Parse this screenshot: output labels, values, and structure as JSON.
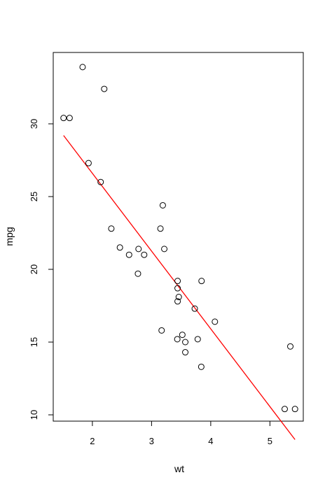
{
  "chart_data": {
    "type": "scatter",
    "title": "",
    "xlabel": "wt",
    "ylabel": "mpg",
    "xlim": [
      1.4,
      5.5
    ],
    "ylim": [
      9.5,
      35
    ],
    "x_ticks": [
      "2",
      "3",
      "4",
      "5"
    ],
    "y_ticks": [
      "10",
      "15",
      "20",
      "25",
      "30"
    ],
    "grid": false,
    "legend": "none",
    "points": [
      {
        "x": 2.62,
        "y": 21.0
      },
      {
        "x": 2.875,
        "y": 21.0
      },
      {
        "x": 2.32,
        "y": 22.8
      },
      {
        "x": 3.215,
        "y": 21.4
      },
      {
        "x": 3.44,
        "y": 18.7
      },
      {
        "x": 3.46,
        "y": 18.1
      },
      {
        "x": 3.57,
        "y": 14.3
      },
      {
        "x": 3.19,
        "y": 24.4
      },
      {
        "x": 3.15,
        "y": 22.8
      },
      {
        "x": 3.44,
        "y": 19.2
      },
      {
        "x": 3.44,
        "y": 17.8
      },
      {
        "x": 4.07,
        "y": 16.4
      },
      {
        "x": 3.73,
        "y": 17.3
      },
      {
        "x": 3.78,
        "y": 15.2
      },
      {
        "x": 5.25,
        "y": 10.4
      },
      {
        "x": 5.424,
        "y": 10.4
      },
      {
        "x": 5.345,
        "y": 14.7
      },
      {
        "x": 2.2,
        "y": 32.4
      },
      {
        "x": 1.615,
        "y": 30.4
      },
      {
        "x": 1.835,
        "y": 33.9
      },
      {
        "x": 2.465,
        "y": 21.5
      },
      {
        "x": 3.52,
        "y": 15.5
      },
      {
        "x": 3.435,
        "y": 15.2
      },
      {
        "x": 3.84,
        "y": 13.3
      },
      {
        "x": 3.845,
        "y": 19.2
      },
      {
        "x": 1.935,
        "y": 27.3
      },
      {
        "x": 2.14,
        "y": 26.0
      },
      {
        "x": 1.513,
        "y": 30.4
      },
      {
        "x": 3.17,
        "y": 15.8
      },
      {
        "x": 2.77,
        "y": 19.7
      },
      {
        "x": 3.57,
        "y": 15.0
      },
      {
        "x": 2.78,
        "y": 21.4
      }
    ],
    "regression_line": {
      "intercept": 37.285,
      "slope": -5.344,
      "x_range": [
        1.513,
        5.424
      ],
      "color": "#ff0000"
    },
    "point_color": "#000000"
  }
}
